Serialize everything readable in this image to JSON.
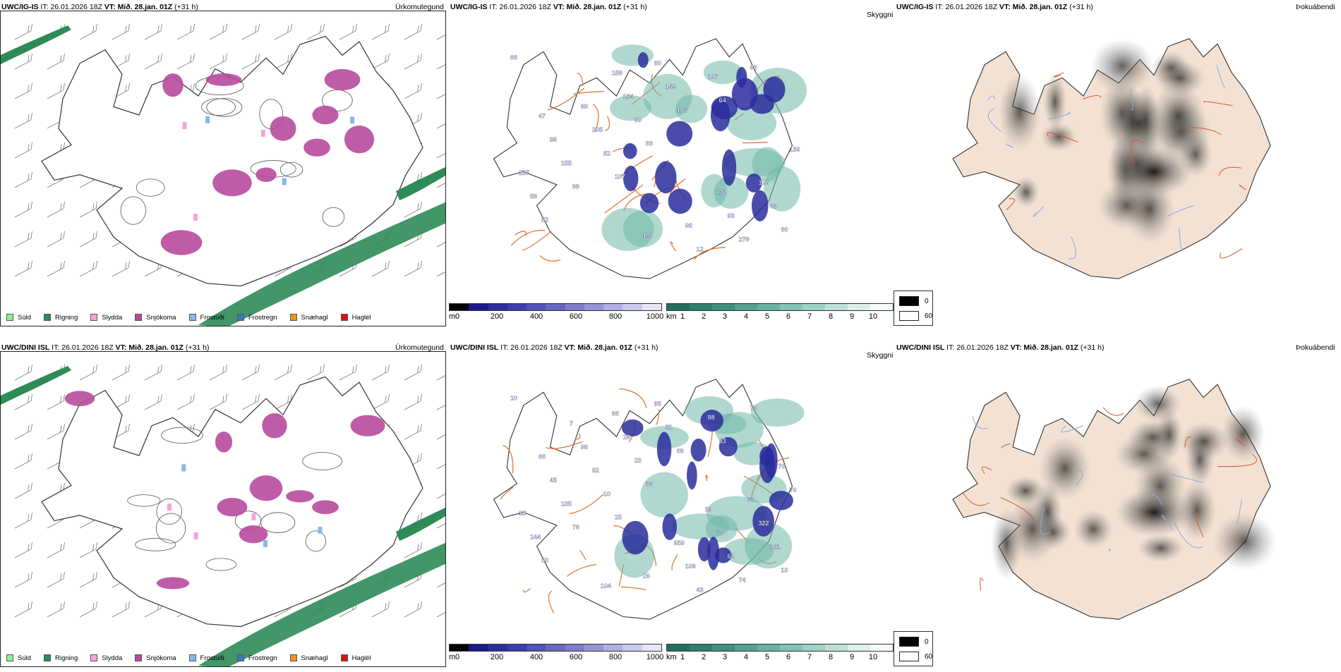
{
  "rows": [
    {
      "model": "UWC/IG-IS",
      "it_label": "IT:",
      "it_value": "26.01.2026 18Z",
      "vt_label": "VT:",
      "vt_value": "Mið. 28.jan. 01Z",
      "lead": "(+31 h)",
      "titles": {
        "precip": "Úrkomutegund",
        "cloud": "Skyggni",
        "fog": "Þokuábendi"
      },
      "cloud_labels": [
        "66",
        "107",
        "64",
        "82",
        "93",
        "88",
        "99",
        "106",
        "90",
        "82",
        "107",
        "59",
        "80",
        "279",
        "155",
        "149",
        "48",
        "205",
        "12",
        "227",
        "154",
        "93",
        "86",
        "80",
        "126",
        "69",
        "98",
        "156",
        "159",
        "132",
        "47",
        "18"
      ]
    },
    {
      "model": "UWC/DINI ISL",
      "it_label": "IT:",
      "it_value": "26.01.2026 18Z",
      "vt_label": "VT:",
      "vt_value": "Mið. 28.jan. 01Z",
      "lead": "(+31 h)",
      "titles": {
        "precip": "Úrkomutegund",
        "cloud": "Skyggni",
        "fog": "Þokuábendi"
      },
      "cloud_labels": [
        "10",
        "25",
        "53",
        "50",
        "36",
        "79",
        "76",
        "69",
        "10",
        "10",
        "88",
        "144",
        "23",
        "74",
        "135",
        "51",
        "181",
        "82",
        "43",
        "35",
        "26",
        "62",
        "45",
        "85",
        "322",
        "98",
        "106",
        "70",
        "66",
        "76",
        "66",
        "26",
        "63",
        "7",
        "659",
        "70",
        "104",
        "39"
      ]
    }
  ],
  "precip_legend": [
    {
      "label": "Súld",
      "color": "#90ee90"
    },
    {
      "label": "Rigning",
      "color": "#2e8b57"
    },
    {
      "label": "Slydda",
      "color": "#f4a6d7"
    },
    {
      "label": "Snjókoma",
      "color": "#b84a9e"
    },
    {
      "label": "Frostúði",
      "color": "#87b8e8"
    },
    {
      "label": "Frostregn",
      "color": "#3a78c2"
    },
    {
      "label": "Snæhagl",
      "color": "#e8961e"
    },
    {
      "label": "Haglél",
      "color": "#e01010"
    }
  ],
  "cloudbase_bar": {
    "unit": "m",
    "ticks": [
      "0",
      "200",
      "400",
      "600",
      "800",
      "1000"
    ]
  },
  "visibility_bar": {
    "unit": "km",
    "ticks": [
      "1",
      "2",
      "3",
      "4",
      "5",
      "6",
      "7",
      "8",
      "9",
      "10"
    ]
  },
  "fog_legend": [
    {
      "value": "0",
      "color": "#000000"
    },
    {
      "value": "60",
      "color": "#ffffff"
    }
  ],
  "colors": {
    "land": "#f3e2d3",
    "rivers": "#8aa6e8",
    "roads": "#e07a3c",
    "snow": "#b84a9e",
    "rain": "#2e8b57"
  }
}
